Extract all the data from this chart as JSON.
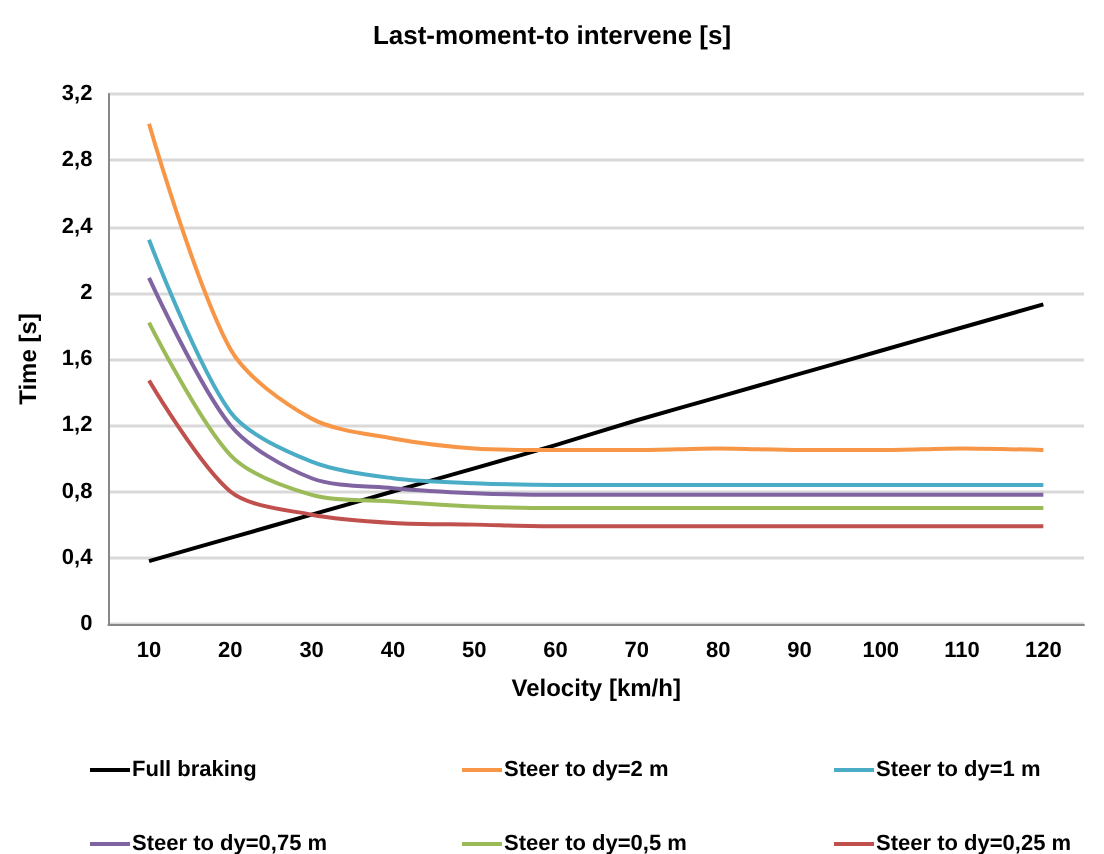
{
  "chart_data": {
    "type": "line",
    "title": "Last-moment-to intervene [s]",
    "xlabel": "Velocity [km/h]",
    "ylabel": "Time [s]",
    "categories": [
      "10",
      "20",
      "30",
      "40",
      "50",
      "60",
      "70",
      "80",
      "90",
      "100",
      "110",
      "120"
    ],
    "series": [
      {
        "name": "Full braking",
        "color": "#000000",
        "values": [
          0.38,
          0.52,
          0.66,
          0.8,
          0.94,
          1.08,
          1.23,
          1.37,
          1.51,
          1.65,
          1.79,
          1.93
        ]
      },
      {
        "name": "Steer to dy=2 m",
        "color": "#f79646",
        "values": [
          3.02,
          1.66,
          1.24,
          1.12,
          1.06,
          1.05,
          1.05,
          1.06,
          1.05,
          1.05,
          1.06,
          1.05
        ]
      },
      {
        "name": "Steer to dy=1 m",
        "color": "#4bacc6",
        "values": [
          2.32,
          1.28,
          0.98,
          0.88,
          0.85,
          0.84,
          0.84,
          0.84,
          0.84,
          0.84,
          0.84,
          0.84
        ]
      },
      {
        "name": "Steer to dy=0,75 m",
        "color": "#8064a2",
        "values": [
          2.09,
          1.2,
          0.88,
          0.82,
          0.79,
          0.78,
          0.78,
          0.78,
          0.78,
          0.78,
          0.78,
          0.78
        ]
      },
      {
        "name": "Steer to dy=0,5 m",
        "color": "#9bbb59",
        "values": [
          1.82,
          1.02,
          0.78,
          0.74,
          0.71,
          0.7,
          0.7,
          0.7,
          0.7,
          0.7,
          0.7,
          0.7
        ]
      },
      {
        "name": "Steer to dy=0,25 m",
        "color": "#c0504d",
        "values": [
          1.47,
          0.8,
          0.66,
          0.61,
          0.6,
          0.59,
          0.59,
          0.59,
          0.59,
          0.59,
          0.59,
          0.59
        ]
      }
    ],
    "ylim": [
      0,
      3.2
    ],
    "yticks": [
      {
        "value": 0,
        "label": "0"
      },
      {
        "value": 0.4,
        "label": "0,4"
      },
      {
        "value": 0.8,
        "label": "0,8"
      },
      {
        "value": 1.2,
        "label": "1,2"
      },
      {
        "value": 1.6,
        "label": "1,6"
      },
      {
        "value": 2,
        "label": "2"
      },
      {
        "value": 2.4,
        "label": "2,4"
      },
      {
        "value": 2.8,
        "label": "2,8"
      },
      {
        "value": 3.2,
        "label": "3,2"
      }
    ],
    "grid": "y",
    "legend": "bottom",
    "marker": "none",
    "line_style": "solid"
  }
}
